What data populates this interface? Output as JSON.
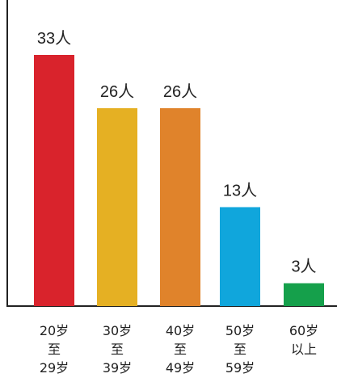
{
  "chart_data": {
    "type": "bar",
    "title": "",
    "xlabel": "",
    "ylabel": "",
    "unit": "人",
    "ylim": [
      0,
      40
    ],
    "categories": [
      [
        "20岁",
        "至",
        "29岁"
      ],
      [
        "30岁",
        "至",
        "39岁"
      ],
      [
        "40岁",
        "至",
        "49岁"
      ],
      [
        "50岁",
        "至",
        "59岁"
      ],
      [
        "60岁",
        "以上"
      ]
    ],
    "values": [
      33,
      26,
      26,
      13,
      3
    ],
    "value_labels": [
      "33人",
      "26人",
      "26人",
      "13人",
      "3人"
    ],
    "colors": [
      "#d9232c",
      "#e5b023",
      "#e0832b",
      "#10a6dc",
      "#15a04b"
    ],
    "grid": false,
    "legend": "none"
  }
}
